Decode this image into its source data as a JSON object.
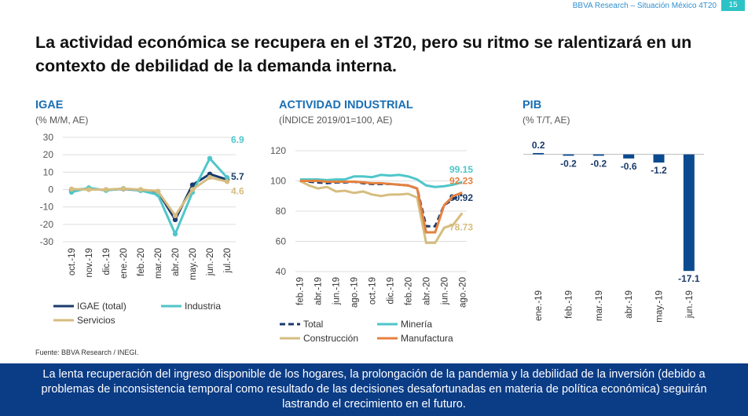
{
  "header": "BBVA Research – Situación México 4T20",
  "page_number": "15",
  "title": "La actividad económica se recupera en el 3T20, pero su ritmo se ralentizará en un contexto de debilidad de la demanda interna.",
  "source": "Fuente: BBVA Research / INEGI.",
  "footer": "La lenta recuperación del ingreso disponible de los hogares, la prolongación de la pandemia y la debilidad de la inversión (debido a problemas de inconsistencia temporal como resultado de las decisiones desafortunadas en materia de política económica) seguirán lastrando el crecimiento en el futuro.",
  "chart_data": [
    {
      "type": "line",
      "title": "IGAE",
      "subtitle": "(% M/M, AE)",
      "categories": [
        "oct.-19",
        "nov.-19",
        "dic.-19",
        "ene.-20",
        "feb.-20",
        "mar.-20",
        "abr.-20",
        "may.-20",
        "jun.-20",
        "jul.-20"
      ],
      "series": [
        {
          "name": "IGAE (total)",
          "color": "#1a3a6b",
          "values": [
            -0.3,
            0.5,
            -0.3,
            0.4,
            -0.5,
            -1.2,
            -17.3,
            2.7,
            8.9,
            5.7
          ]
        },
        {
          "name": "Industria",
          "color": "#4fc6c9",
          "values": [
            -1.5,
            1,
            -0.5,
            0.6,
            -0.5,
            -3,
            -25.5,
            -1.5,
            17.9,
            6.9
          ]
        },
        {
          "name": "Servicios",
          "color": "#d6bd80",
          "values": [
            0.3,
            0,
            0,
            0.5,
            0,
            -1,
            -15,
            0,
            7,
            4.6
          ]
        }
      ],
      "ylim": [
        -30,
        30
      ],
      "yticks": [
        -30,
        -20,
        -10,
        0,
        10,
        20,
        30
      ],
      "grid": true
    },
    {
      "type": "line",
      "title": "ACTIVIDAD INDUSTRIAL",
      "subtitle": "(ÍNDICE 2019/01=100, AE)",
      "categories": [
        "feb.-19",
        null,
        "abr.-19",
        null,
        "jun.-19",
        null,
        "ago.-19",
        null,
        "oct.-19",
        null,
        "dic.-19",
        null,
        "feb.-20",
        null,
        "abr.-20",
        null,
        "jun.-20",
        null,
        "ago.-20"
      ],
      "series": [
        {
          "name": "Total",
          "color": "#1a3a6b",
          "dashed": true,
          "values": [
            100,
            99.5,
            99,
            98.5,
            99,
            99,
            99.5,
            98.5,
            98,
            98,
            98,
            97.5,
            97,
            95,
            70,
            70,
            84,
            88,
            90.92
          ]
        },
        {
          "name": "Minería",
          "color": "#4fc6c9",
          "values": [
            101,
            101,
            101,
            100.5,
            101,
            101,
            103,
            103,
            102.5,
            104,
            103.5,
            104,
            103,
            101,
            97,
            96,
            96.5,
            97.5,
            99.15
          ]
        },
        {
          "name": "Construcción",
          "color": "#d6bd80",
          "values": [
            100,
            97,
            95,
            96,
            93,
            93.5,
            92,
            93,
            91,
            90,
            91,
            91,
            91.5,
            89,
            59,
            59,
            69,
            71,
            78.73
          ]
        },
        {
          "name": "Manufactura",
          "color": "#e5813f",
          "values": [
            100,
            100,
            100,
            99.5,
            99.5,
            99.5,
            99.5,
            99,
            98.5,
            98.5,
            98,
            97.5,
            97,
            95,
            66,
            66,
            84,
            90,
            92.23
          ]
        }
      ],
      "ylim": [
        40,
        120
      ],
      "yticks": [
        40,
        60,
        80,
        100,
        120
      ],
      "grid": true
    },
    {
      "type": "bar",
      "title": "PIB",
      "subtitle": "(% T/T, AE)",
      "categories": [
        "ene.-19",
        "feb.-19",
        "mar.-19",
        "abr.-19",
        "may.-19",
        "jun.-19"
      ],
      "values": [
        0.2,
        -0.2,
        -0.2,
        -0.6,
        -1.2,
        -17.1
      ],
      "color": "#0b4a8f",
      "ylim": [
        -18,
        1
      ]
    }
  ]
}
